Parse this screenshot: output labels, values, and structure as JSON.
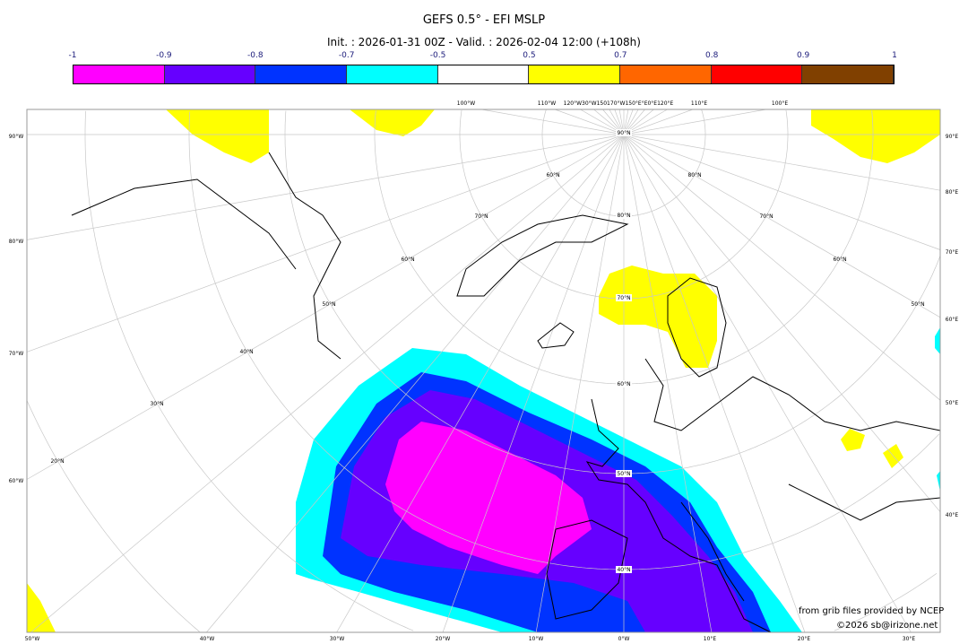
{
  "title": "GEFS 0.5° - EFI MSLP",
  "subtitle": "Init. : 2026-01-31 00Z - Valid. : 2026-02-04 12:00 (+108h)",
  "colorbar": {
    "ticks": [
      "-1",
      "-0.9",
      "-0.8",
      "-0.7",
      "-0.5",
      "0.5",
      "0.7",
      "0.8",
      "0.9",
      "1"
    ],
    "colors": [
      "#ff00ff",
      "#6600ff",
      "#0033ff",
      "#00ffff",
      "#ffffff",
      "#ffff00",
      "#ff6600",
      "#ff0000",
      "#804000"
    ]
  },
  "map": {
    "left_labels": [
      "90°W",
      "80°W",
      "70°W",
      "60°W"
    ],
    "right_labels": [
      "90°E",
      "80°E",
      "70°E",
      "60°E",
      "50°E",
      "40°E"
    ],
    "bottom_labels": [
      "50°W",
      "40°W",
      "30°W",
      "20°W",
      "10°W",
      "0°W",
      "10°E",
      "20°E",
      "30°E"
    ],
    "top_labels": [
      "100°W",
      "110°W",
      "120°W30°W150170°W150°E°E0°E120°E",
      "110°E",
      "100°E"
    ],
    "lat_labels": [
      "90°N",
      "80°N",
      "70°N",
      "60°N",
      "50°N",
      "40°N"
    ],
    "left_lat_labels": [
      "60°N",
      "70°N",
      "60°N",
      "50°N",
      "40°N",
      "30°N",
      "20°N"
    ],
    "right_lat_labels": [
      "80°N",
      "70°N",
      "60°N",
      "50°N"
    ]
  },
  "credits": {
    "line1": "from grib files provided by NCEP",
    "line2": "©2026 sb@irizone.net"
  }
}
